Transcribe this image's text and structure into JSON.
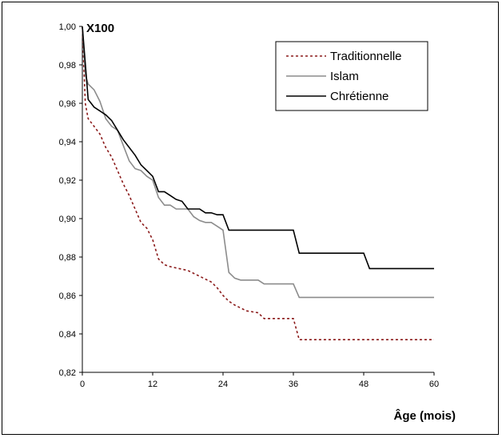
{
  "chart_data": {
    "type": "line",
    "scale_label": "X100",
    "xlabel": "Âge (mois)",
    "ylabel": "",
    "xlim": [
      0,
      60
    ],
    "ylim": [
      0.82,
      1.0
    ],
    "x_ticks": [
      "0",
      "12",
      "24",
      "36",
      "48",
      "60"
    ],
    "y_ticks": [
      "0,82",
      "0,84",
      "0,86",
      "0,88",
      "0,90",
      "0,92",
      "0,94",
      "0,96",
      "0,98",
      "1,00"
    ],
    "grid": false,
    "legend_position": "top-right",
    "series": [
      {
        "name": "Traditionnelle",
        "color": "#8b1a1a",
        "dash": "dotted",
        "points": [
          [
            0,
            1.0
          ],
          [
            0.5,
            0.96
          ],
          [
            1,
            0.952
          ],
          [
            2,
            0.948
          ],
          [
            3,
            0.944
          ],
          [
            4,
            0.937
          ],
          [
            5,
            0.932
          ],
          [
            6,
            0.925
          ],
          [
            7,
            0.918
          ],
          [
            8,
            0.912
          ],
          [
            9,
            0.905
          ],
          [
            10,
            0.898
          ],
          [
            11,
            0.895
          ],
          [
            12,
            0.889
          ],
          [
            13,
            0.879
          ],
          [
            14,
            0.876
          ],
          [
            15,
            0.875
          ],
          [
            18,
            0.873
          ],
          [
            20,
            0.87
          ],
          [
            22,
            0.867
          ],
          [
            23,
            0.864
          ],
          [
            24,
            0.86
          ],
          [
            25,
            0.857
          ],
          [
            26,
            0.855
          ],
          [
            28,
            0.852
          ],
          [
            30,
            0.851
          ],
          [
            31,
            0.848
          ],
          [
            36,
            0.848
          ],
          [
            37,
            0.837
          ],
          [
            60,
            0.837
          ]
        ]
      },
      {
        "name": "Islam",
        "color": "#8c8c8c",
        "dash": "solid",
        "points": [
          [
            0,
            1.0
          ],
          [
            0.5,
            0.975
          ],
          [
            1,
            0.97
          ],
          [
            2,
            0.967
          ],
          [
            3,
            0.961
          ],
          [
            4,
            0.952
          ],
          [
            5,
            0.948
          ],
          [
            6,
            0.946
          ],
          [
            7,
            0.938
          ],
          [
            8,
            0.93
          ],
          [
            9,
            0.926
          ],
          [
            10,
            0.925
          ],
          [
            11,
            0.922
          ],
          [
            12,
            0.92
          ],
          [
            13,
            0.911
          ],
          [
            14,
            0.907
          ],
          [
            15,
            0.907
          ],
          [
            16,
            0.905
          ],
          [
            18,
            0.905
          ],
          [
            19,
            0.901
          ],
          [
            20,
            0.899
          ],
          [
            21,
            0.898
          ],
          [
            22,
            0.898
          ],
          [
            23,
            0.896
          ],
          [
            24,
            0.894
          ],
          [
            25,
            0.872
          ],
          [
            26,
            0.869
          ],
          [
            27,
            0.868
          ],
          [
            30,
            0.868
          ],
          [
            31,
            0.866
          ],
          [
            36,
            0.866
          ],
          [
            37,
            0.859
          ],
          [
            60,
            0.859
          ]
        ]
      },
      {
        "name": "Chrétienne",
        "color": "#000000",
        "dash": "solid",
        "points": [
          [
            0,
            1.0
          ],
          [
            1,
            0.962
          ],
          [
            2,
            0.958
          ],
          [
            3,
            0.956
          ],
          [
            4,
            0.954
          ],
          [
            5,
            0.951
          ],
          [
            6,
            0.946
          ],
          [
            7,
            0.941
          ],
          [
            8,
            0.937
          ],
          [
            9,
            0.933
          ],
          [
            10,
            0.928
          ],
          [
            11,
            0.925
          ],
          [
            12,
            0.922
          ],
          [
            13,
            0.914
          ],
          [
            14,
            0.914
          ],
          [
            15,
            0.912
          ],
          [
            16,
            0.91
          ],
          [
            17,
            0.909
          ],
          [
            18,
            0.905
          ],
          [
            20,
            0.905
          ],
          [
            21,
            0.903
          ],
          [
            22,
            0.903
          ],
          [
            23,
            0.902
          ],
          [
            24,
            0.902
          ],
          [
            25,
            0.894
          ],
          [
            36,
            0.894
          ],
          [
            37,
            0.882
          ],
          [
            48,
            0.882
          ],
          [
            49,
            0.874
          ],
          [
            60,
            0.874
          ]
        ]
      }
    ]
  }
}
